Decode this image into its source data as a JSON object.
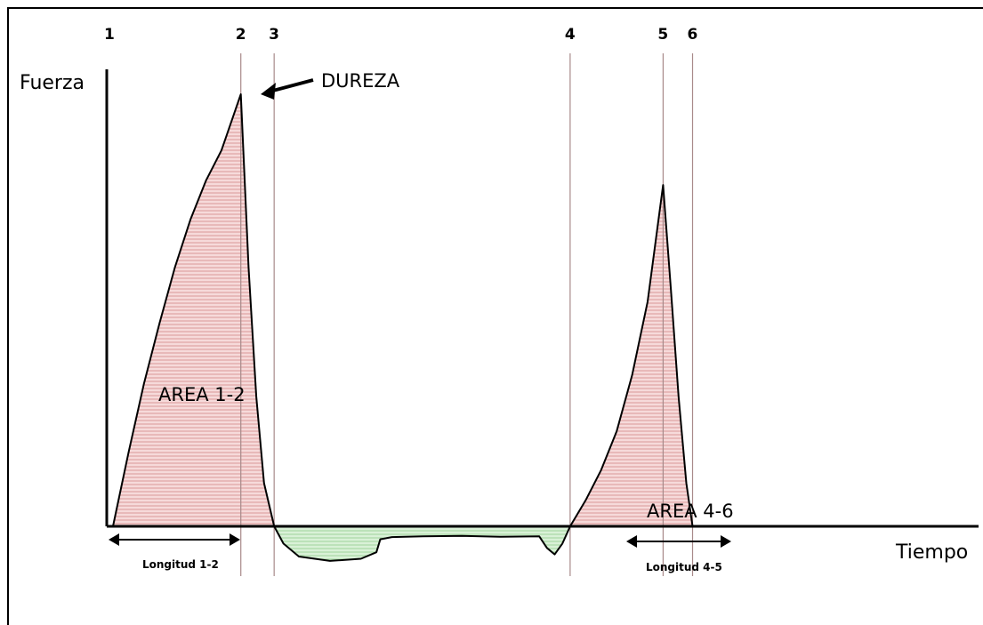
{
  "chart_data": {
    "type": "area",
    "title": "",
    "xlabel": "Tiempo",
    "ylabel": "Fuerza",
    "xlim": [
      0,
      100
    ],
    "ylim": [
      -10,
      100
    ],
    "grid": false,
    "markers": [
      {
        "label": "1",
        "x": 0
      },
      {
        "label": "2",
        "x": 16.5
      },
      {
        "label": "3",
        "x": 20.8
      },
      {
        "label": "4",
        "x": 59.0
      },
      {
        "label": "5",
        "x": 71.0
      },
      {
        "label": "6",
        "x": 74.8
      }
    ],
    "series": [
      {
        "x": [
          0,
          2,
          4,
          6,
          8,
          10,
          12,
          14,
          16.5,
          17.5,
          18.5,
          19.5,
          20.8
        ],
        "values": [
          0,
          17,
          33,
          47,
          60,
          71,
          80,
          87,
          100,
          60,
          30,
          10,
          0
        ]
      },
      {
        "x": [
          20.8,
          22,
          24,
          28,
          32,
          34,
          34.5,
          36,
          40,
          45,
          50,
          55,
          56,
          57,
          58,
          59
        ],
        "values": [
          0,
          -4,
          -7,
          -8,
          -7.5,
          -6,
          -3,
          -2.5,
          -2.3,
          -2.2,
          -2.4,
          -2.3,
          -5,
          -6.5,
          -4,
          0
        ]
      },
      {
        "x": [
          59,
          61,
          63,
          65,
          67,
          69,
          71,
          72,
          73,
          74,
          74.8
        ],
        "values": [
          0,
          6,
          13,
          22,
          35,
          52,
          79,
          55,
          30,
          10,
          0
        ]
      }
    ],
    "annotations": {
      "peak": "DUREZA",
      "area_1": "AREA 1-2",
      "area_2": "AREA 4-6",
      "length_1": "Longitud 1-2",
      "length_2": "Longitud 4-5"
    },
    "colors": {
      "positive_fill": "#f1c5c5",
      "negative_fill": "#cdeecb",
      "marker_line": "#a88a8a",
      "curve": "#000000"
    }
  }
}
